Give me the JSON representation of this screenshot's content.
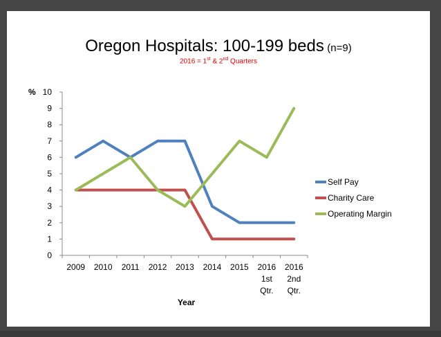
{
  "chart_data": {
    "type": "line",
    "title": "Oregon Hospitals:  100-199 beds",
    "title_suffix": "(n=9)",
    "subtitle_parts": [
      "2016 = 1",
      "st",
      " & 2",
      "nd",
      " Quarters"
    ],
    "xlabel": "Year",
    "ylabel": "%",
    "ylim": [
      0,
      10
    ],
    "y_ticks": [
      "0",
      "1",
      "2",
      "3",
      "4",
      "5",
      "6",
      "7",
      "8",
      "9",
      "10"
    ],
    "categories": [
      [
        "2009"
      ],
      [
        "2010"
      ],
      [
        "2011"
      ],
      [
        "2012"
      ],
      [
        "2013"
      ],
      [
        "2014"
      ],
      [
        "2015"
      ],
      [
        "2016",
        "1st",
        "Qtr."
      ],
      [
        "2016",
        "2nd",
        "Qtr."
      ]
    ],
    "series": [
      {
        "name": "Self Pay",
        "color": "#4f81bd",
        "values": [
          6,
          7,
          6,
          7,
          7,
          3,
          2,
          2,
          2
        ]
      },
      {
        "name": "Charity Care",
        "color": "#c0504d",
        "values": [
          4,
          4,
          4,
          4,
          4,
          1,
          1,
          1,
          1
        ]
      },
      {
        "name": "Operating Margin",
        "color": "#9bbb59",
        "values": [
          4,
          5,
          6,
          4,
          3,
          5,
          7,
          6,
          9
        ]
      }
    ],
    "grid": false,
    "legend": "right"
  }
}
